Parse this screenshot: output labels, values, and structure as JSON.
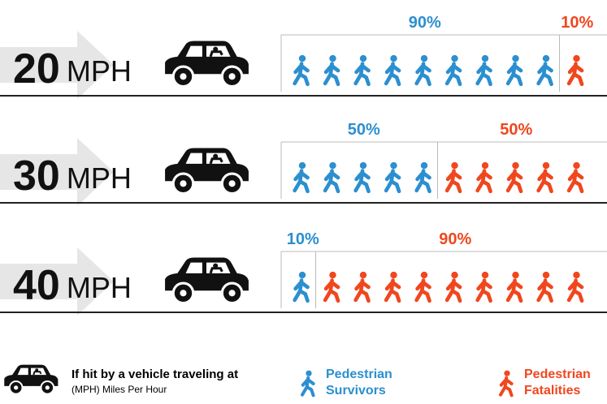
{
  "chart_data": {
    "type": "pictograph",
    "categories": [
      "20",
      "30",
      "40"
    ],
    "unit": "MPH",
    "series": [
      {
        "name": "Pedestrian Survivors",
        "color": "#2b8fd0",
        "values": [
          90,
          50,
          10
        ],
        "value_labels": [
          "90%",
          "50%",
          "10%"
        ]
      },
      {
        "name": "Pedestrian Fatalities",
        "color": "#f0471e",
        "values": [
          10,
          50,
          90
        ],
        "value_labels": [
          "10%",
          "50%",
          "90%"
        ]
      }
    ],
    "legend_note": "If hit by a vehicle traveling at",
    "legend_subnote": "(MPH) Miles Per Hour"
  }
}
